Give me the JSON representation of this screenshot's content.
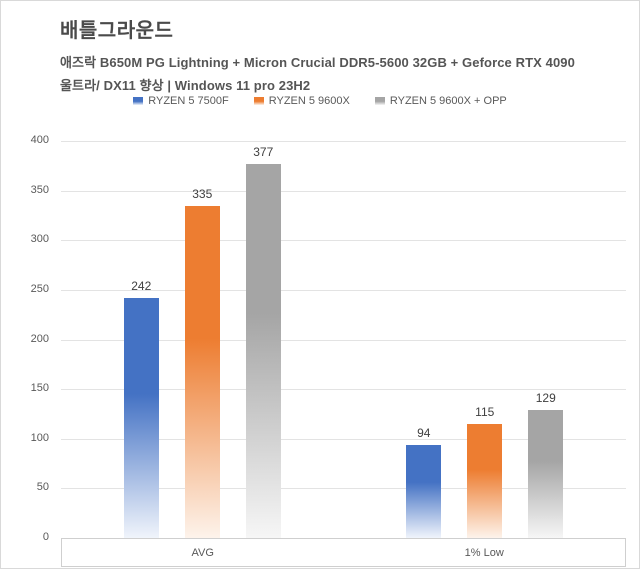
{
  "header": {
    "title": "배틀그라운드",
    "subtitle1": "애즈락 B650M PG Lightning + Micron Crucial DDR5-5600 32GB + Geforce RTX 4090",
    "subtitle2": "울트라/ DX11 향상 | Windows 11 pro 23H2"
  },
  "chart_data": {
    "type": "bar",
    "title": "배틀그라운드",
    "categories": [
      "AVG",
      "1% Low"
    ],
    "series": [
      {
        "name": "RYZEN 5 7500F",
        "color": "#4472C4",
        "color_light": "#F0F4FB",
        "values": [
          242,
          94
        ]
      },
      {
        "name": "RYZEN 5 9600X",
        "color": "#ED7D31",
        "color_light": "#FDF3EB",
        "values": [
          335,
          115
        ]
      },
      {
        "name": "RYZEN 5 9600X + OPP",
        "color": "#A5A5A5",
        "color_light": "#F6F6F6",
        "values": [
          377,
          129
        ]
      }
    ],
    "ylim": [
      0,
      400
    ],
    "ytick_step": 50,
    "grid": true,
    "legend_position": "top",
    "xlabel": "",
    "ylabel": ""
  },
  "style": {
    "grid_color": "#E3E3E3",
    "axis_box_color": "#CFCFCF",
    "tick_text_color": "#595959",
    "data_label_color": "#404040"
  }
}
